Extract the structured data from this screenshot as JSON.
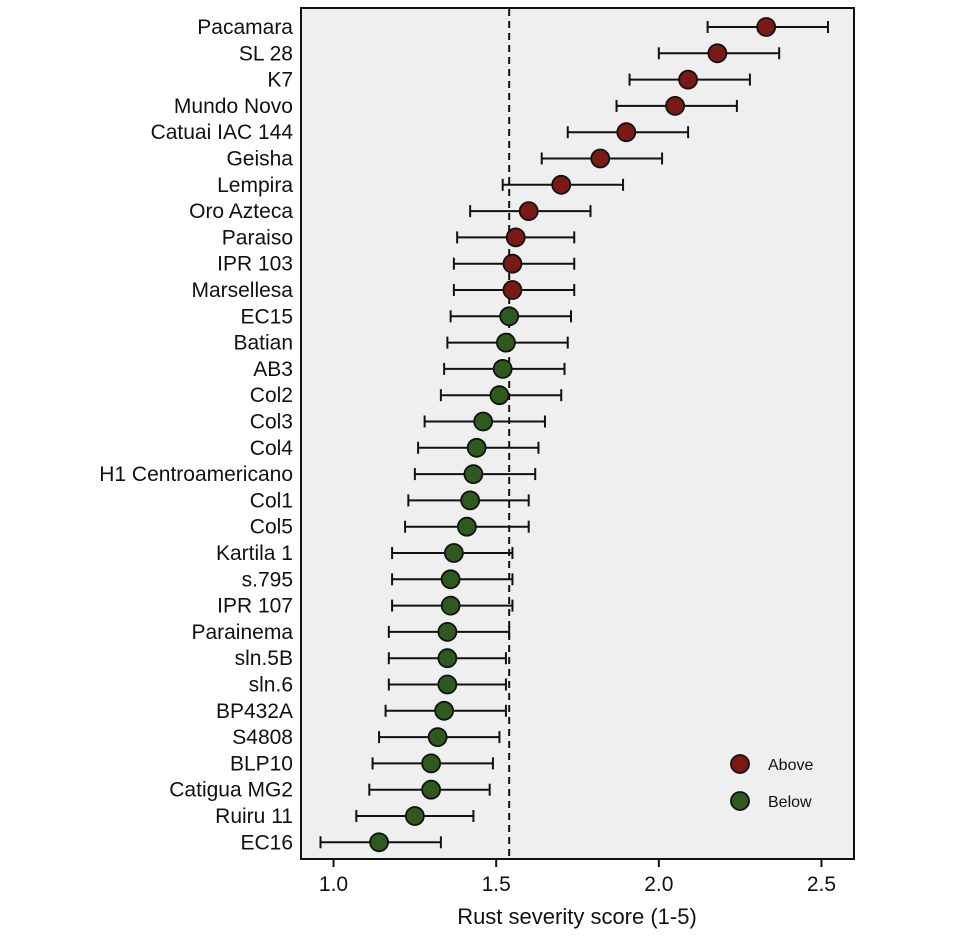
{
  "chart_data": {
    "type": "scatter",
    "subtype": "dot-plot-with-error-bars",
    "title": "",
    "xlabel": "Rust severity score (1-5)",
    "ylabel": "",
    "xlim": [
      0.9,
      2.6
    ],
    "xticks": [
      1.0,
      1.5,
      2.0,
      2.5
    ],
    "xtick_labels": [
      "1.0",
      "1.5",
      "2.0",
      "2.5"
    ],
    "reference_line": {
      "x": 1.54,
      "style": "dashed"
    },
    "grid": false,
    "background": "#efefef",
    "colors": {
      "Above": "#7b1a14",
      "Below": "#2f5a1e"
    },
    "legend": {
      "position": "bottom-right",
      "entries": [
        {
          "label": "Above",
          "color": "#7b1a14"
        },
        {
          "label": "Below",
          "color": "#2f5a1e"
        }
      ]
    },
    "categories": [
      "Pacamara",
      "SL 28",
      "K7",
      "Mundo Novo",
      "Catuai IAC 144",
      "Geisha",
      "Lempira",
      "Oro Azteca",
      "Paraiso",
      "IPR 103",
      "Marsellesa",
      "EC15",
      "Batian",
      "AB3",
      "Col2",
      "Col3",
      "Col4",
      "H1 Centroamericano",
      "Col1",
      "Col5",
      "Kartila 1",
      "s.795",
      "IPR 107",
      "Parainema",
      "sln.5B",
      "sln.6",
      "BP432A",
      "S4808",
      "BLP10",
      "Catigua MG2",
      "Ruiru 11",
      "EC16"
    ],
    "points": [
      {
        "label": "Pacamara",
        "value": 2.33,
        "low": 2.15,
        "high": 2.52,
        "group": "Above"
      },
      {
        "label": "SL 28",
        "value": 2.18,
        "low": 2.0,
        "high": 2.37,
        "group": "Above"
      },
      {
        "label": "K7",
        "value": 2.09,
        "low": 1.91,
        "high": 2.28,
        "group": "Above"
      },
      {
        "label": "Mundo Novo",
        "value": 2.05,
        "low": 1.87,
        "high": 2.24,
        "group": "Above"
      },
      {
        "label": "Catuai IAC 144",
        "value": 1.9,
        "low": 1.72,
        "high": 2.09,
        "group": "Above"
      },
      {
        "label": "Geisha",
        "value": 1.82,
        "low": 1.64,
        "high": 2.01,
        "group": "Above"
      },
      {
        "label": "Lempira",
        "value": 1.7,
        "low": 1.52,
        "high": 1.89,
        "group": "Above"
      },
      {
        "label": "Oro Azteca",
        "value": 1.6,
        "low": 1.42,
        "high": 1.79,
        "group": "Above"
      },
      {
        "label": "Paraiso",
        "value": 1.56,
        "low": 1.38,
        "high": 1.74,
        "group": "Above"
      },
      {
        "label": "IPR 103",
        "value": 1.55,
        "low": 1.37,
        "high": 1.74,
        "group": "Above"
      },
      {
        "label": "Marsellesa",
        "value": 1.55,
        "low": 1.37,
        "high": 1.74,
        "group": "Above"
      },
      {
        "label": "EC15",
        "value": 1.54,
        "low": 1.36,
        "high": 1.73,
        "group": "Below"
      },
      {
        "label": "Batian",
        "value": 1.53,
        "low": 1.35,
        "high": 1.72,
        "group": "Below"
      },
      {
        "label": "AB3",
        "value": 1.52,
        "low": 1.34,
        "high": 1.71,
        "group": "Below"
      },
      {
        "label": "Col2",
        "value": 1.51,
        "low": 1.33,
        "high": 1.7,
        "group": "Below"
      },
      {
        "label": "Col3",
        "value": 1.46,
        "low": 1.28,
        "high": 1.65,
        "group": "Below"
      },
      {
        "label": "Col4",
        "value": 1.44,
        "low": 1.26,
        "high": 1.63,
        "group": "Below"
      },
      {
        "label": "H1 Centroamericano",
        "value": 1.43,
        "low": 1.25,
        "high": 1.62,
        "group": "Below"
      },
      {
        "label": "Col1",
        "value": 1.42,
        "low": 1.23,
        "high": 1.6,
        "group": "Below"
      },
      {
        "label": "Col5",
        "value": 1.41,
        "low": 1.22,
        "high": 1.6,
        "group": "Below"
      },
      {
        "label": "Kartila 1",
        "value": 1.37,
        "low": 1.18,
        "high": 1.55,
        "group": "Below"
      },
      {
        "label": "s.795",
        "value": 1.36,
        "low": 1.18,
        "high": 1.55,
        "group": "Below"
      },
      {
        "label": "IPR 107",
        "value": 1.36,
        "low": 1.18,
        "high": 1.55,
        "group": "Below"
      },
      {
        "label": "Parainema",
        "value": 1.35,
        "low": 1.17,
        "high": 1.54,
        "group": "Below"
      },
      {
        "label": "sln.5B",
        "value": 1.35,
        "low": 1.17,
        "high": 1.53,
        "group": "Below"
      },
      {
        "label": "sln.6",
        "value": 1.35,
        "low": 1.17,
        "high": 1.53,
        "group": "Below"
      },
      {
        "label": "BP432A",
        "value": 1.34,
        "low": 1.16,
        "high": 1.53,
        "group": "Below"
      },
      {
        "label": "S4808",
        "value": 1.32,
        "low": 1.14,
        "high": 1.51,
        "group": "Below"
      },
      {
        "label": "BLP10",
        "value": 1.3,
        "low": 1.12,
        "high": 1.49,
        "group": "Below"
      },
      {
        "label": "Catigua MG2",
        "value": 1.3,
        "low": 1.11,
        "high": 1.48,
        "group": "Below"
      },
      {
        "label": "Ruiru 11",
        "value": 1.25,
        "low": 1.07,
        "high": 1.43,
        "group": "Below"
      },
      {
        "label": "EC16",
        "value": 1.14,
        "low": 0.96,
        "high": 1.33,
        "group": "Below"
      }
    ]
  }
}
